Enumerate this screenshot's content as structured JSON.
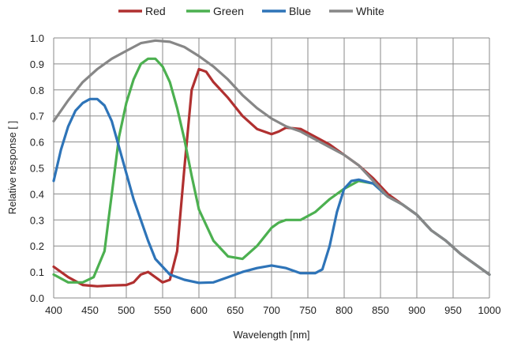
{
  "chart_data": {
    "type": "line",
    "xlabel": "Wavelength [nm]",
    "ylabel": "Relative response [ ]",
    "xlim": [
      400,
      1000
    ],
    "ylim": [
      0,
      1.0
    ],
    "x_ticks": [
      "400",
      "450",
      "500",
      "550",
      "600",
      "650",
      "700",
      "750",
      "800",
      "850",
      "900",
      "950",
      "1000"
    ],
    "y_ticks": [
      "0.0",
      "0.1",
      "0.2",
      "0.3",
      "0.4",
      "0.5",
      "0.6",
      "0.7",
      "0.8",
      "0.9",
      "1.0"
    ],
    "grid": true,
    "legend_position": "top-center",
    "series": [
      {
        "name": "Red",
        "color": "#b03030",
        "points": [
          [
            400,
            0.12
          ],
          [
            420,
            0.08
          ],
          [
            440,
            0.05
          ],
          [
            460,
            0.045
          ],
          [
            480,
            0.048
          ],
          [
            500,
            0.05
          ],
          [
            510,
            0.06
          ],
          [
            520,
            0.09
          ],
          [
            530,
            0.1
          ],
          [
            540,
            0.08
          ],
          [
            550,
            0.06
          ],
          [
            560,
            0.07
          ],
          [
            570,
            0.18
          ],
          [
            580,
            0.5
          ],
          [
            590,
            0.8
          ],
          [
            600,
            0.88
          ],
          [
            610,
            0.87
          ],
          [
            620,
            0.83
          ],
          [
            640,
            0.77
          ],
          [
            660,
            0.7
          ],
          [
            680,
            0.65
          ],
          [
            700,
            0.63
          ],
          [
            710,
            0.64
          ],
          [
            720,
            0.655
          ],
          [
            740,
            0.65
          ],
          [
            760,
            0.62
          ],
          [
            780,
            0.59
          ],
          [
            800,
            0.55
          ],
          [
            820,
            0.51
          ],
          [
            840,
            0.46
          ],
          [
            860,
            0.4
          ],
          [
            880,
            0.36
          ],
          [
            900,
            0.32
          ],
          [
            920,
            0.26
          ],
          [
            940,
            0.22
          ],
          [
            960,
            0.17
          ],
          [
            980,
            0.13
          ],
          [
            1000,
            0.09
          ]
        ]
      },
      {
        "name": "Green",
        "color": "#4cb050",
        "points": [
          [
            400,
            0.09
          ],
          [
            420,
            0.06
          ],
          [
            440,
            0.06
          ],
          [
            455,
            0.08
          ],
          [
            470,
            0.18
          ],
          [
            480,
            0.4
          ],
          [
            490,
            0.62
          ],
          [
            500,
            0.75
          ],
          [
            510,
            0.84
          ],
          [
            520,
            0.9
          ],
          [
            530,
            0.92
          ],
          [
            540,
            0.92
          ],
          [
            550,
            0.89
          ],
          [
            560,
            0.83
          ],
          [
            570,
            0.73
          ],
          [
            580,
            0.61
          ],
          [
            590,
            0.47
          ],
          [
            600,
            0.34
          ],
          [
            620,
            0.22
          ],
          [
            640,
            0.16
          ],
          [
            660,
            0.15
          ],
          [
            680,
            0.2
          ],
          [
            700,
            0.27
          ],
          [
            710,
            0.29
          ],
          [
            720,
            0.3
          ],
          [
            740,
            0.3
          ],
          [
            760,
            0.33
          ],
          [
            780,
            0.38
          ],
          [
            800,
            0.42
          ],
          [
            820,
            0.45
          ],
          [
            840,
            0.44
          ],
          [
            860,
            0.39
          ],
          [
            880,
            0.36
          ],
          [
            900,
            0.32
          ],
          [
            920,
            0.26
          ],
          [
            940,
            0.22
          ],
          [
            960,
            0.17
          ],
          [
            980,
            0.13
          ],
          [
            1000,
            0.09
          ]
        ]
      },
      {
        "name": "Blue",
        "color": "#2e74b8",
        "points": [
          [
            400,
            0.45
          ],
          [
            410,
            0.57
          ],
          [
            420,
            0.66
          ],
          [
            430,
            0.72
          ],
          [
            440,
            0.75
          ],
          [
            450,
            0.765
          ],
          [
            460,
            0.765
          ],
          [
            470,
            0.74
          ],
          [
            480,
            0.68
          ],
          [
            490,
            0.58
          ],
          [
            500,
            0.48
          ],
          [
            510,
            0.38
          ],
          [
            520,
            0.3
          ],
          [
            530,
            0.22
          ],
          [
            540,
            0.15
          ],
          [
            560,
            0.09
          ],
          [
            580,
            0.07
          ],
          [
            600,
            0.058
          ],
          [
            620,
            0.06
          ],
          [
            640,
            0.08
          ],
          [
            660,
            0.1
          ],
          [
            680,
            0.115
          ],
          [
            700,
            0.125
          ],
          [
            720,
            0.115
          ],
          [
            740,
            0.095
          ],
          [
            760,
            0.095
          ],
          [
            770,
            0.11
          ],
          [
            780,
            0.2
          ],
          [
            790,
            0.33
          ],
          [
            800,
            0.42
          ],
          [
            810,
            0.45
          ],
          [
            820,
            0.455
          ],
          [
            840,
            0.44
          ],
          [
            860,
            0.39
          ],
          [
            880,
            0.36
          ],
          [
            900,
            0.32
          ],
          [
            920,
            0.26
          ],
          [
            940,
            0.22
          ],
          [
            960,
            0.17
          ],
          [
            980,
            0.13
          ],
          [
            1000,
            0.09
          ]
        ]
      },
      {
        "name": "White",
        "color": "#878787",
        "points": [
          [
            400,
            0.68
          ],
          [
            420,
            0.76
          ],
          [
            440,
            0.83
          ],
          [
            460,
            0.88
          ],
          [
            480,
            0.92
          ],
          [
            500,
            0.95
          ],
          [
            520,
            0.98
          ],
          [
            540,
            0.99
          ],
          [
            560,
            0.985
          ],
          [
            580,
            0.965
          ],
          [
            600,
            0.93
          ],
          [
            620,
            0.89
          ],
          [
            640,
            0.84
          ],
          [
            660,
            0.78
          ],
          [
            680,
            0.73
          ],
          [
            700,
            0.69
          ],
          [
            720,
            0.66
          ],
          [
            740,
            0.64
          ],
          [
            760,
            0.61
          ],
          [
            780,
            0.58
          ],
          [
            800,
            0.55
          ],
          [
            820,
            0.51
          ],
          [
            840,
            0.45
          ],
          [
            860,
            0.39
          ],
          [
            880,
            0.36
          ],
          [
            900,
            0.32
          ],
          [
            920,
            0.26
          ],
          [
            940,
            0.22
          ],
          [
            960,
            0.17
          ],
          [
            980,
            0.13
          ],
          [
            1000,
            0.09
          ]
        ]
      }
    ]
  }
}
